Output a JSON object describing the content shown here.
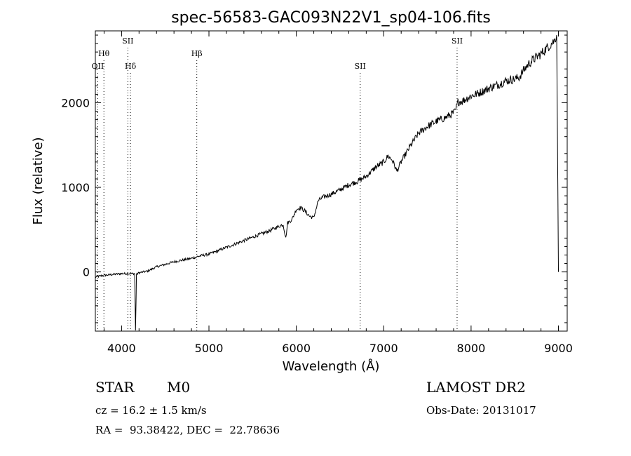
{
  "title": "spec-56583-GAC093N22V1_sp04-106.fits",
  "chart_data": {
    "type": "line",
    "xlabel": "Wavelength (Å)",
    "ylabel": "Flux (relative)",
    "xlim": [
      3700,
      9100
    ],
    "ylim": [
      -700,
      2850
    ],
    "x_ticks": [
      4000,
      5000,
      6000,
      7000,
      8000,
      9000
    ],
    "y_ticks": [
      0,
      1000,
      2000
    ],
    "grid": false,
    "lines": [
      {
        "label": "OII",
        "wavelength": 3727,
        "row": 3
      },
      {
        "label": "Hθ",
        "wavelength": 3798,
        "row": 2
      },
      {
        "label": "SII",
        "wavelength": 4072,
        "row": 1
      },
      {
        "label": "Hδ",
        "wavelength": 4102,
        "row": 3
      },
      {
        "label": "Hβ",
        "wavelength": 4861,
        "row": 2
      },
      {
        "label": "SII",
        "wavelength": 6731,
        "row": 3
      },
      {
        "label": "SII",
        "wavelength": 7840,
        "row": 1
      }
    ],
    "series": [
      {
        "x": [
          3700,
          3800,
          3900,
          4000,
          4100,
          4150,
          4160,
          4170,
          4200,
          4300,
          4400,
          4500,
          4600,
          4700,
          4800,
          4900,
          5000,
          5100,
          5200,
          5300,
          5400,
          5500,
          5600,
          5700,
          5800,
          5850,
          5880,
          5900,
          5950,
          6000,
          6050,
          6100,
          6150,
          6200,
          6250,
          6300,
          6400,
          6500,
          6600,
          6700,
          6800,
          6900,
          7000,
          7050,
          7100,
          7150,
          7200,
          7300,
          7400,
          7500,
          7600,
          7700,
          7800,
          7820,
          7850,
          7900,
          8000,
          8100,
          8200,
          8300,
          8400,
          8500,
          8550,
          8600,
          8650,
          8700,
          8800,
          8900,
          8950,
          8980,
          9000
        ],
        "y": [
          -60,
          -40,
          -30,
          -20,
          -20,
          -20,
          -700,
          -30,
          -10,
          10,
          60,
          90,
          120,
          140,
          160,
          190,
          210,
          250,
          290,
          330,
          370,
          410,
          450,
          490,
          540,
          560,
          400,
          580,
          620,
          740,
          760,
          720,
          660,
          640,
          840,
          880,
          920,
          970,
          1030,
          1070,
          1130,
          1230,
          1300,
          1370,
          1320,
          1190,
          1300,
          1480,
          1640,
          1720,
          1780,
          1820,
          1880,
          1900,
          2010,
          2020,
          2080,
          2120,
          2170,
          2210,
          2260,
          2280,
          2300,
          2380,
          2450,
          2500,
          2580,
          2680,
          2730,
          2800,
          0
        ]
      }
    ]
  },
  "footer": {
    "object_type": "STAR",
    "subclass": "M0",
    "survey": "LAMOST DR2",
    "redshift": "cz = 16.2 ± 1.5 km/s",
    "obs_date": "Obs-Date: 20131017",
    "coords": "RA =  93.38422, DEC =  22.78636"
  }
}
